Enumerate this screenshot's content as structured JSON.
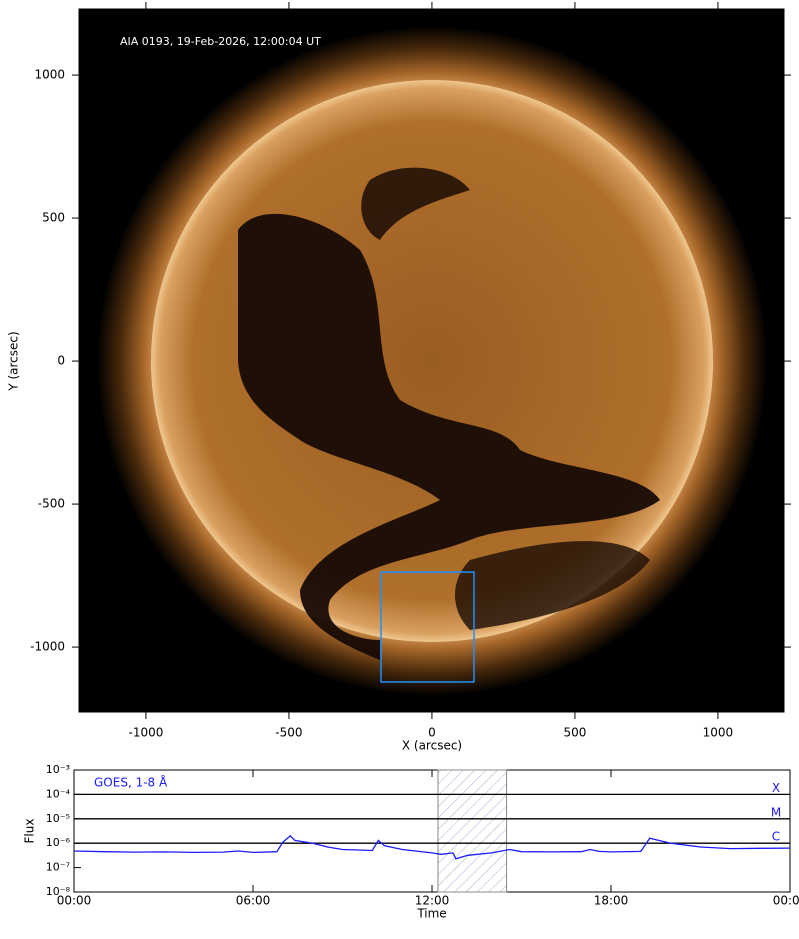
{
  "chart_data": [
    {
      "type": "image",
      "title": "AIA 0193, 19-Feb-2026, 12:00:04 UT",
      "xlabel": "X (arcsec)",
      "ylabel": "Y (arcsec)",
      "xlim": [
        -1234,
        1231
      ],
      "ylim": [
        -1227,
        1231
      ],
      "xticks": [
        -1000,
        -500,
        0,
        500,
        1000
      ],
      "yticks": [
        -1000,
        -500,
        0,
        500,
        1000
      ],
      "region": {
        "xlim": [
          -178,
          147
        ],
        "ylim": [
          -1122,
          -738
        ],
        "color": "#1e90ff"
      }
    },
    {
      "type": "line",
      "xlabel": "Time",
      "ylabel": "Flux",
      "log": true,
      "xlim": [
        0,
        24
      ],
      "xticks": [
        {
          "value": 0,
          "label": "00:00"
        },
        {
          "value": 6,
          "label": "06:00"
        },
        {
          "value": 12,
          "label": "12:00"
        },
        {
          "value": 18,
          "label": "18:00"
        },
        {
          "value": 24,
          "label": "00:00"
        }
      ],
      "ylim": [
        1e-08,
        0.001
      ],
      "yticks": [
        {
          "value": 1e-08,
          "label": "10⁻⁸"
        },
        {
          "value": 1e-07,
          "label": "10⁻⁷"
        },
        {
          "value": 1e-06,
          "label": "10⁻⁶"
        },
        {
          "value": 1e-05,
          "label": "10⁻⁵"
        },
        {
          "value": 0.0001,
          "label": "10⁻⁴"
        },
        {
          "value": 0.001,
          "label": "10⁻³"
        }
      ],
      "levels": [
        {
          "value": 0.0001,
          "label": "X"
        },
        {
          "value": 1e-05,
          "label": "M"
        },
        {
          "value": 1e-06,
          "label": "C"
        }
      ],
      "shaded": [
        12.2,
        14.5
      ],
      "x": [
        0,
        1,
        2,
        3,
        4,
        5,
        5.5,
        6,
        6.8,
        7.0,
        7.25,
        7.4,
        8,
        8.5,
        9,
        10,
        10.2,
        10.4,
        11,
        12,
        12.3,
        12.7,
        12.8,
        13.2,
        14,
        14.6,
        15,
        16,
        17,
        17.3,
        17.6,
        18,
        19,
        19.3,
        19.6,
        20,
        21,
        22,
        23,
        24
      ],
      "series": [
        {
          "name": "GOES, 1-8 Å",
          "color": "#1a1aff",
          "values": [
            4.8e-07,
            4.5e-07,
            4.3e-07,
            4.4e-07,
            4.2e-07,
            4.3e-07,
            4.8e-07,
            4.2e-07,
            4.5e-07,
            1.1e-06,
            2e-06,
            1.3e-06,
            1e-06,
            7e-07,
            5.5e-07,
            5e-07,
            1.3e-06,
            8e-07,
            5.5e-07,
            4e-07,
            3.5e-07,
            4e-07,
            2.3e-07,
            3.2e-07,
            4e-07,
            5.5e-07,
            4.5e-07,
            4.4e-07,
            4.5e-07,
            5.5e-07,
            4.6e-07,
            4.4e-07,
            4.6e-07,
            1.6e-06,
            1.3e-06,
            1e-06,
            7e-07,
            6e-07,
            6.2e-07,
            6.3e-07
          ]
        }
      ]
    }
  ]
}
